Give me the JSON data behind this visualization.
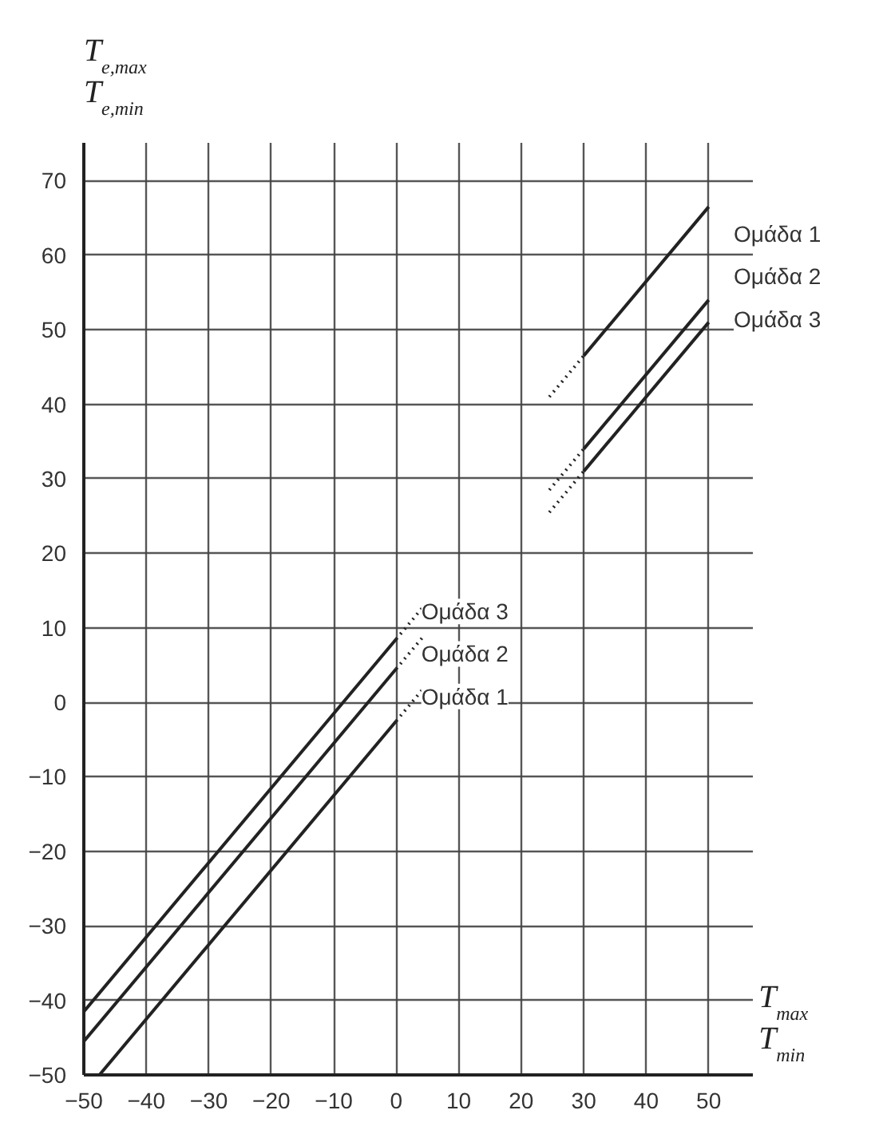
{
  "chart_data": {
    "type": "line",
    "xlabel": "T$_{max}$\nT$_{min}$",
    "ylabel": "T$_{e,max}$\nT$_{e,min}$",
    "xlim": [
      -50,
      57
    ],
    "ylim": [
      -50,
      75
    ],
    "xticks": [
      -50,
      -40,
      -30,
      -20,
      -10,
      0,
      10,
      20,
      30,
      40,
      50
    ],
    "yticks": [
      -50,
      -40,
      -30,
      -20,
      -10,
      0,
      10,
      20,
      30,
      40,
      50,
      60,
      70
    ],
    "grid": true,
    "line_style": "solid",
    "series": [
      {
        "name": "Ομάδα 3",
        "color": "#222222",
        "x": [
          -50,
          0
        ],
        "values": [
          -41.5,
          8.5
        ]
      },
      {
        "name": "Ομάδα 2",
        "color": "#222222",
        "x": [
          -50,
          0
        ],
        "values": [
          -45.5,
          4.5
        ]
      },
      {
        "name": "Ομάδα 1",
        "color": "#222222",
        "x": [
          -47.5,
          0
        ],
        "values": [
          -50,
          -2.5
        ]
      },
      {
        "color": "#222222",
        "line_style": "dotted",
        "x": [
          0,
          4.5
        ],
        "values": [
          8.5,
          13
        ]
      },
      {
        "color": "#222222",
        "line_style": "dotted",
        "x": [
          0,
          4.5
        ],
        "values": [
          4.5,
          9
        ]
      },
      {
        "color": "#222222",
        "line_style": "dotted",
        "x": [
          0,
          4.5
        ],
        "values": [
          -2.5,
          2
        ]
      },
      {
        "name": "Ομάδα 1",
        "color": "#222222",
        "x": [
          30,
          50
        ],
        "values": [
          46.5,
          66.5
        ]
      },
      {
        "name": "Ομάδα 2",
        "color": "#222222",
        "x": [
          30,
          50
        ],
        "values": [
          34,
          54
        ]
      },
      {
        "name": "Ομάδα 3",
        "color": "#222222",
        "x": [
          30,
          50
        ],
        "values": [
          31,
          51
        ]
      },
      {
        "color": "#222222",
        "line_style": "dotted",
        "x": [
          24.5,
          30
        ],
        "values": [
          41,
          46.5
        ]
      },
      {
        "color": "#222222",
        "line_style": "dotted",
        "x": [
          24.5,
          30
        ],
        "values": [
          28.5,
          34
        ]
      },
      {
        "color": "#222222",
        "line_style": "dotted",
        "x": [
          24.5,
          30
        ],
        "values": [
          25.5,
          31
        ]
      }
    ]
  }
}
